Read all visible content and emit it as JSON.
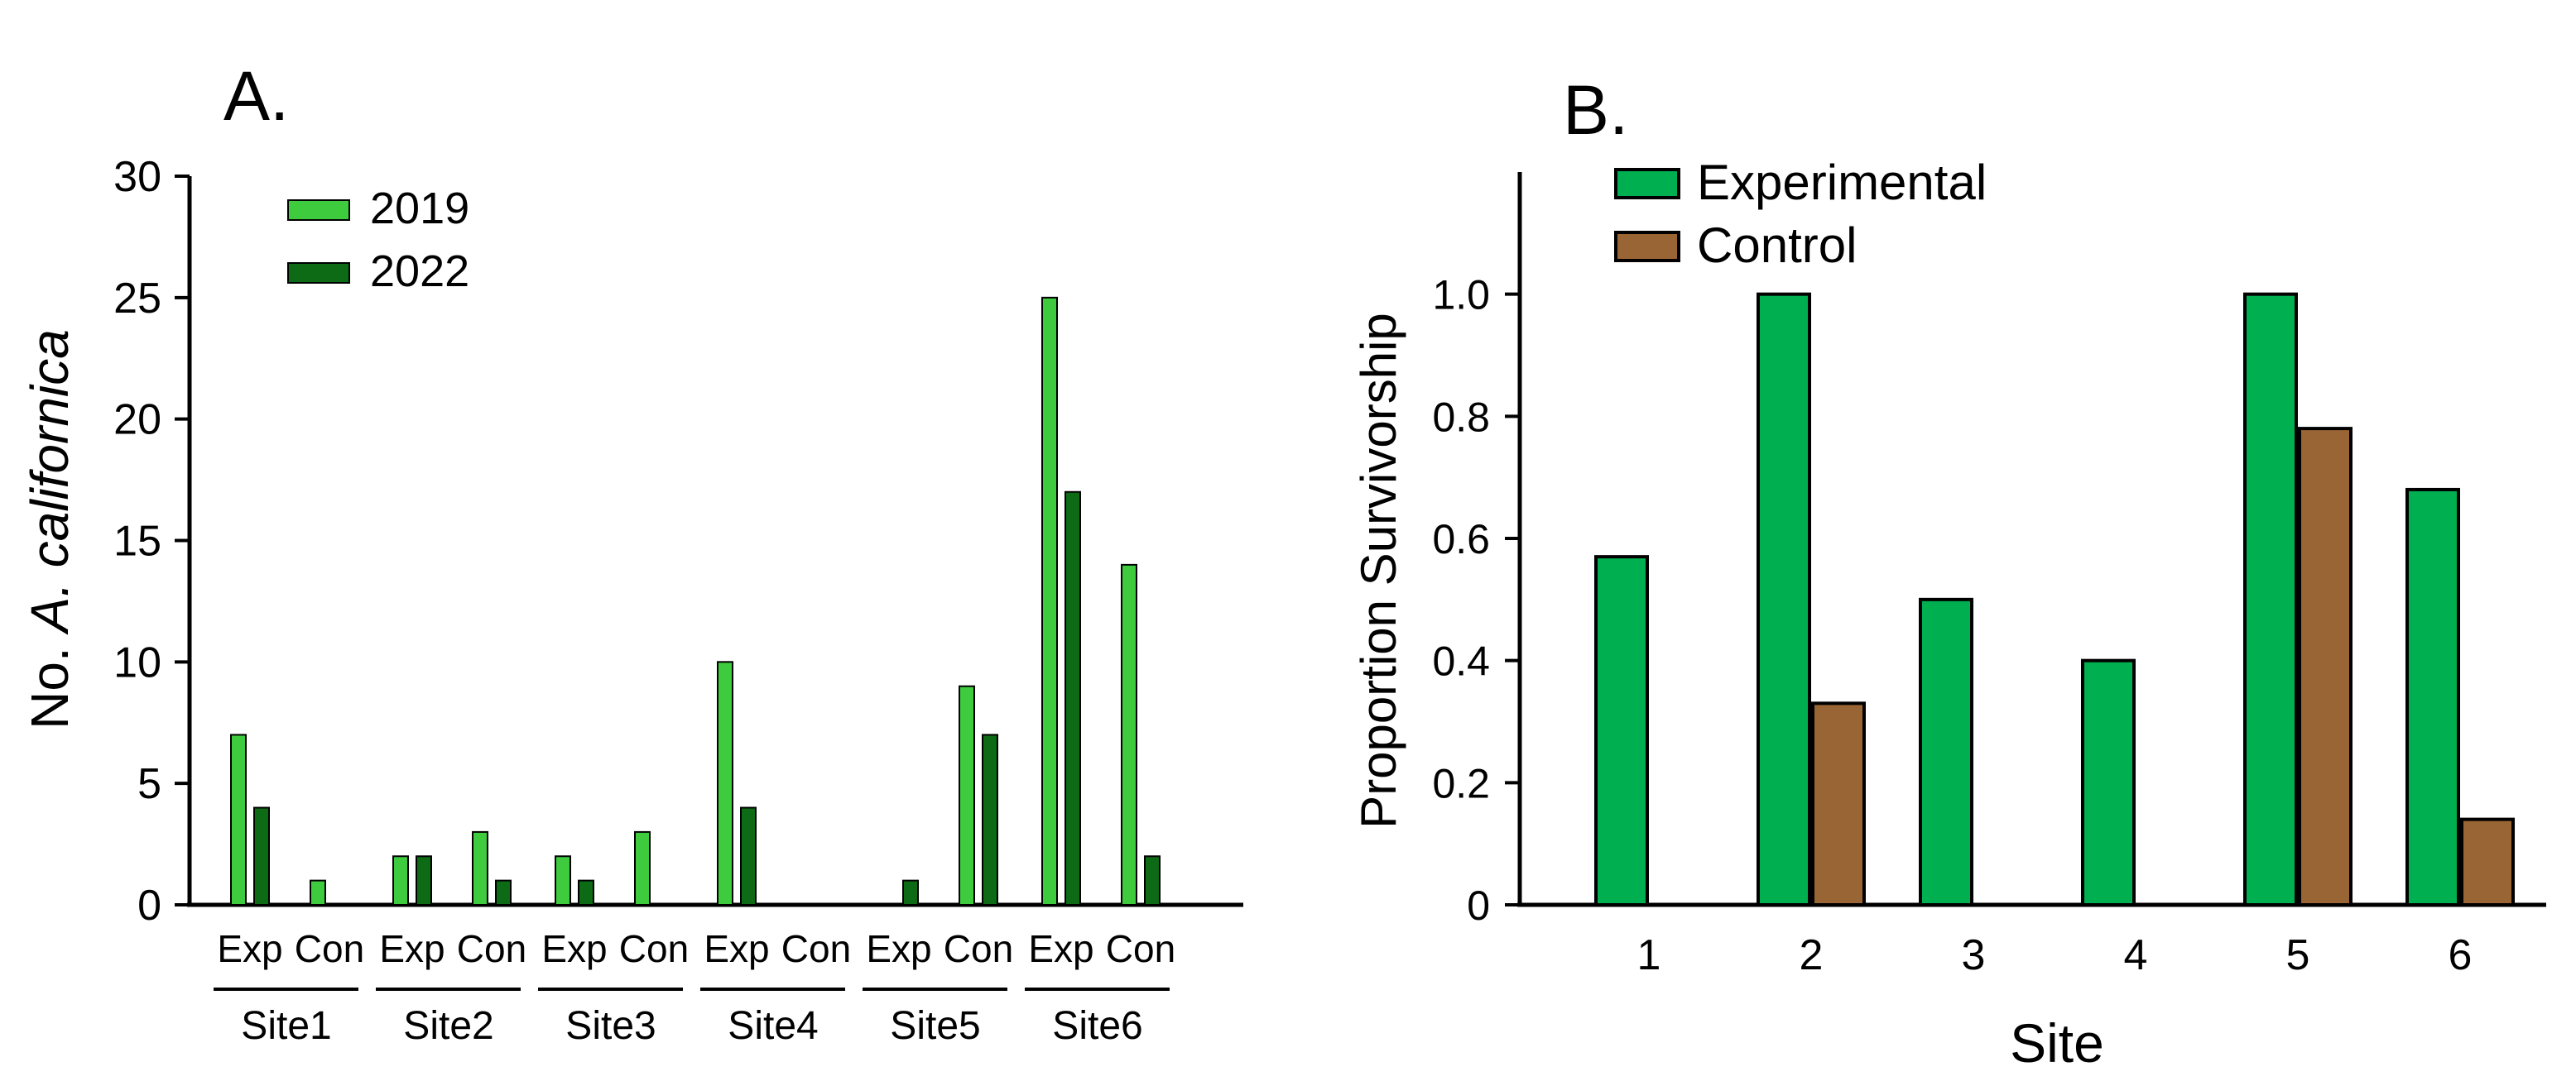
{
  "chart_data": [
    {
      "panel_label": "A.",
      "type": "bar",
      "ylabel_prefix": "No. ",
      "ylabel_italic": "A. californica",
      "ylim": [
        0,
        30
      ],
      "yticks": [
        0,
        5,
        10,
        15,
        20,
        25,
        30
      ],
      "groups": [
        "Site1",
        "Site2",
        "Site3",
        "Site4",
        "Site5",
        "Site6"
      ],
      "subcategories": [
        "Exp",
        "Con"
      ],
      "legend": {
        "position": "top-left"
      },
      "series": [
        {
          "name": "2019",
          "color": "#3ecc3e",
          "values": [
            [
              7,
              1
            ],
            [
              2,
              3
            ],
            [
              2,
              3
            ],
            [
              10,
              0
            ],
            [
              0,
              9
            ],
            [
              25,
              14
            ]
          ]
        },
        {
          "name": "2022",
          "color": "#0c6b14",
          "values": [
            [
              4,
              0
            ],
            [
              2,
              1
            ],
            [
              1,
              0
            ],
            [
              4,
              0
            ],
            [
              1,
              7
            ],
            [
              17,
              2
            ]
          ]
        }
      ]
    },
    {
      "panel_label": "B.",
      "type": "bar",
      "xlabel": "Site",
      "ylabel": "Proportion Survivorship",
      "ylim": [
        0,
        1.2
      ],
      "yticks": [
        0,
        0.2,
        0.4,
        0.6,
        0.8,
        1.0
      ],
      "ytick_labels": [
        "0",
        "0.2",
        "0.4",
        "0.6",
        "0.8",
        "1.0"
      ],
      "categories": [
        "1",
        "2",
        "3",
        "4",
        "5",
        "6"
      ],
      "legend": {
        "position": "top-left"
      },
      "series": [
        {
          "name": "Experimental",
          "color": "#00b050",
          "values": [
            0.57,
            1.0,
            0.5,
            0.4,
            1.0,
            0.68
          ]
        },
        {
          "name": "Control",
          "color": "#9a6535",
          "values": [
            0,
            0.33,
            0,
            0,
            0.78,
            0.14
          ]
        }
      ]
    }
  ]
}
